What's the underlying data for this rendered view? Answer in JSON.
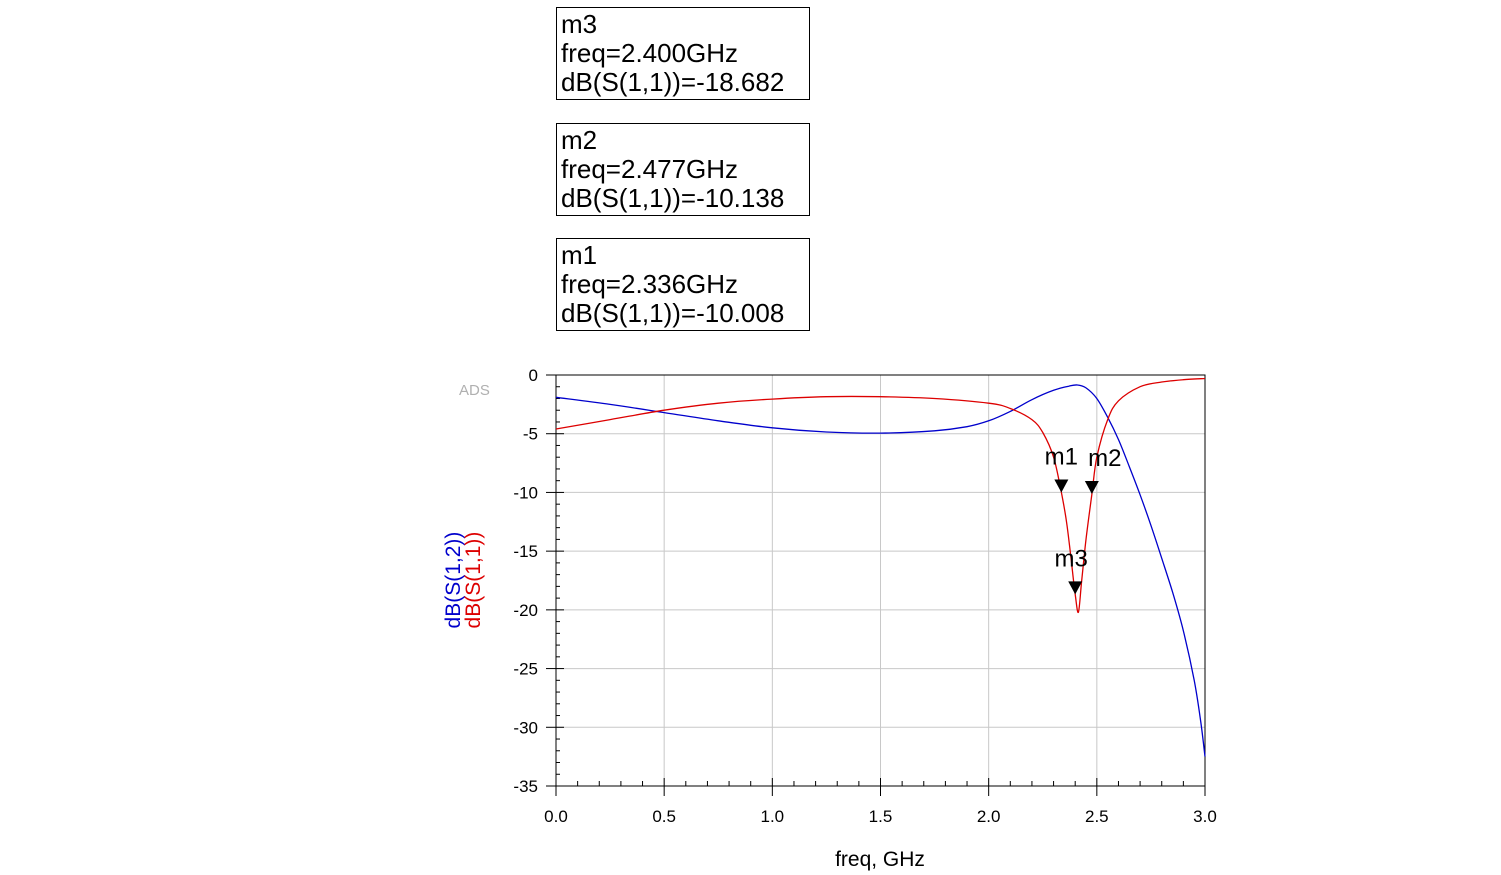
{
  "marker_readouts": [
    {
      "name": "m3",
      "freq_line": "freq=2.400GHz",
      "value_line": "dB(S(1,1))=-18.682"
    },
    {
      "name": "m2",
      "freq_line": "freq=2.477GHz",
      "value_line": "dB(S(1,1))=-10.138"
    },
    {
      "name": "m1",
      "freq_line": "freq=2.336GHz",
      "value_line": "dB(S(1,1))=-10.008"
    }
  ],
  "watermark": "ADS",
  "chart_data": {
    "type": "line",
    "title": "",
    "xlabel": "freq, GHz",
    "ylabel_series": [
      "dB(S(1,2))",
      "dB(S(1,1))"
    ],
    "xlim": [
      0.0,
      3.0
    ],
    "ylim": [
      -35,
      0
    ],
    "x_ticks": [
      "0.0",
      "0.5",
      "1.0",
      "1.5",
      "2.0",
      "2.5",
      "3.0"
    ],
    "y_ticks": [
      "0",
      "-5",
      "-10",
      "-15",
      "-20",
      "-25",
      "-30",
      "-35"
    ],
    "grid": true,
    "series": [
      {
        "name": "dB(S(1,2))",
        "color": "#0000cc",
        "points": [
          [
            0.0,
            -1.9
          ],
          [
            0.25,
            -2.5
          ],
          [
            0.5,
            -3.2
          ],
          [
            0.75,
            -3.9
          ],
          [
            1.0,
            -4.5
          ],
          [
            1.25,
            -4.85
          ],
          [
            1.5,
            -4.95
          ],
          [
            1.75,
            -4.75
          ],
          [
            1.9,
            -4.4
          ],
          [
            2.0,
            -3.9
          ],
          [
            2.1,
            -3.1
          ],
          [
            2.2,
            -2.1
          ],
          [
            2.3,
            -1.3
          ],
          [
            2.37,
            -0.95
          ],
          [
            2.41,
            -0.85
          ],
          [
            2.45,
            -1.1
          ],
          [
            2.5,
            -2.0
          ],
          [
            2.55,
            -3.6
          ],
          [
            2.6,
            -5.5
          ],
          [
            2.65,
            -7.8
          ],
          [
            2.7,
            -10.2
          ],
          [
            2.75,
            -12.8
          ],
          [
            2.8,
            -15.6
          ],
          [
            2.85,
            -18.5
          ],
          [
            2.9,
            -21.8
          ],
          [
            2.95,
            -26.0
          ],
          [
            2.98,
            -29.5
          ],
          [
            3.0,
            -32.5
          ]
        ]
      },
      {
        "name": "dB(S(1,1))",
        "color": "#dd0000",
        "points": [
          [
            0.0,
            -4.6
          ],
          [
            0.25,
            -3.8
          ],
          [
            0.5,
            -3.0
          ],
          [
            0.75,
            -2.4
          ],
          [
            1.0,
            -2.05
          ],
          [
            1.25,
            -1.85
          ],
          [
            1.5,
            -1.85
          ],
          [
            1.75,
            -2.0
          ],
          [
            2.0,
            -2.4
          ],
          [
            2.1,
            -2.85
          ],
          [
            2.2,
            -3.8
          ],
          [
            2.25,
            -4.9
          ],
          [
            2.3,
            -7.0
          ],
          [
            2.336,
            -10.008
          ],
          [
            2.36,
            -12.5
          ],
          [
            2.38,
            -15.5
          ],
          [
            2.4,
            -18.682
          ],
          [
            2.415,
            -20.2
          ],
          [
            2.43,
            -17.5
          ],
          [
            2.45,
            -14.0
          ],
          [
            2.477,
            -10.138
          ],
          [
            2.5,
            -7.0
          ],
          [
            2.55,
            -3.8
          ],
          [
            2.6,
            -2.2
          ],
          [
            2.7,
            -1.0
          ],
          [
            2.8,
            -0.6
          ],
          [
            2.9,
            -0.4
          ],
          [
            3.0,
            -0.3
          ]
        ]
      }
    ],
    "markers": [
      {
        "name": "m1",
        "x": 2.336,
        "y": -10.008
      },
      {
        "name": "m2",
        "x": 2.477,
        "y": -10.138
      },
      {
        "name": "m3",
        "x": 2.4,
        "y": -18.682
      }
    ]
  }
}
